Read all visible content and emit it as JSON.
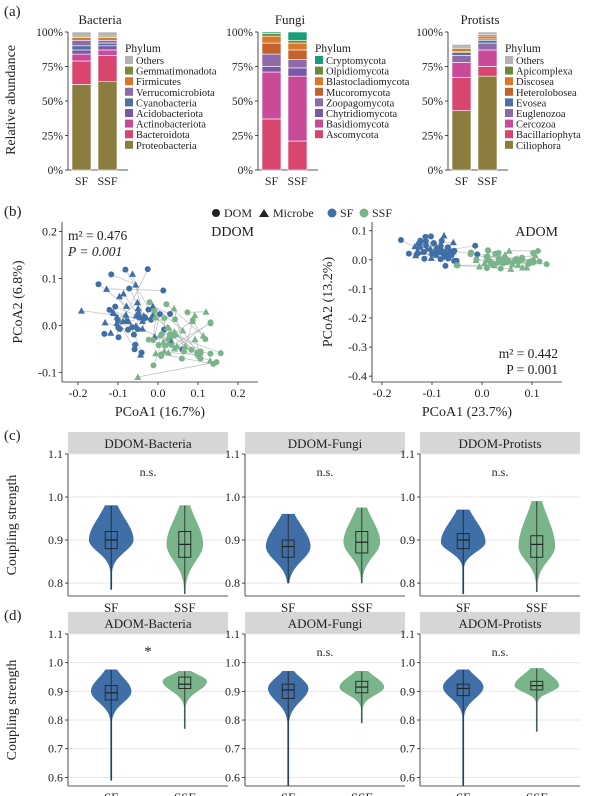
{
  "panel_labels": {
    "a": "(a)",
    "b": "(b)",
    "c": "(c)",
    "d": "(d)"
  },
  "colors": {
    "SF": "#3f6fa6",
    "SSF": "#79b48a",
    "strip_bg": "#d6d6d6",
    "grid": "#e7e7e7",
    "line": "#bdbdbd"
  },
  "panel_a": {
    "ylabel": "Relative abundance",
    "yticks": [
      "0%",
      "25%",
      "50%",
      "75%",
      "100%"
    ],
    "legend_title": "Phylum",
    "charts": [
      {
        "title": "Bacteria",
        "categories": [
          "SF",
          "SSF"
        ],
        "phyla": [
          "Others",
          "Gemmatimonadota",
          "Firmicutes",
          "Verrucomicrobiota",
          "Cyanobacteria",
          "Acidobacteriota",
          "Actinobacteriota",
          "Bacteroidota",
          "Proteobacteria"
        ],
        "colors": [
          "#b3b3b3",
          "#7a8b3c",
          "#d9772a",
          "#8f6aa8",
          "#4f6fa3",
          "#7a58a8",
          "#c84a99",
          "#d8456f",
          "#8b7d3e"
        ],
        "values": {
          "SF": [
            3,
            1,
            2,
            4,
            3,
            3,
            5,
            17,
            62
          ],
          "SSF": [
            3,
            1,
            2,
            2,
            2,
            3,
            4,
            19,
            64
          ]
        }
      },
      {
        "title": "Fungi",
        "categories": [
          "SF",
          "SSF"
        ],
        "phyla": [
          "Cryptomycota",
          "Olpidiomycota",
          "Blastocladiomycota",
          "Mucoromycota",
          "Zoopagomycota",
          "Chytridiomycota",
          "Basidiomycota",
          "Ascomycota"
        ],
        "colors": [
          "#1a9e7a",
          "#6c8a3a",
          "#d9772a",
          "#c4622e",
          "#8f6aa8",
          "#7a58a8",
          "#c84a99",
          "#d8456f"
        ],
        "values": {
          "SF": [
            1,
            2,
            5,
            8,
            9,
            4,
            34,
            37
          ],
          "SSF": [
            6,
            2,
            5,
            7,
            6,
            6,
            47,
            21
          ]
        }
      },
      {
        "title": "Protists",
        "categories": [
          "SF",
          "SSF"
        ],
        "phyla": [
          "Others",
          "Apicomplexa",
          "Discosea",
          "Heterolobosea",
          "Evosea",
          "Euglenozoa",
          "Cercozoa",
          "Bacillariophyta",
          "Ciliophora"
        ],
        "colors": [
          "#b3b3b3",
          "#6c8a3a",
          "#d9772a",
          "#c4622e",
          "#4f6fa3",
          "#8f6aa8",
          "#c84a99",
          "#d8456f",
          "#8b7d3e"
        ],
        "values": {
          "SF": [
            2,
            1,
            2,
            1,
            2,
            5,
            11,
            24,
            43
          ],
          "SSF": [
            2,
            1,
            2,
            1,
            2,
            5,
            12,
            7,
            68
          ]
        }
      }
    ]
  },
  "panel_b": {
    "legend": {
      "dom": "DOM",
      "microbe": "Microbe",
      "sf": "SF",
      "ssf": "SSF"
    },
    "plots": [
      {
        "title": "DDOM",
        "xlabel": "PCoA1 (16.7%)",
        "ylabel": "PCoA2 (6.8%)",
        "xlim": [
          -0.24,
          0.25
        ],
        "ylim": [
          -0.12,
          0.22
        ],
        "xticks": [
          -0.2,
          -0.1,
          0.0,
          0.1,
          0.2
        ],
        "yticks": [
          -0.1,
          0.0,
          0.1,
          0.2
        ],
        "xtick_labels": [
          "-0.2",
          "-0.1",
          "0.0",
          "0.1",
          "0.2"
        ],
        "ytick_labels": [
          "-0.1",
          "0.0",
          "0.1",
          "0.2"
        ],
        "stat_m2": "m² = 0.476",
        "stat_p": "P = 0.001",
        "stat_pos": "top-left",
        "center_sf": [
          -0.07,
          0.02
        ],
        "spread_sf": [
          0.07,
          0.06
        ],
        "center_ssf": [
          0.05,
          -0.03
        ],
        "spread_ssf": [
          0.07,
          0.05
        ],
        "seed": 11
      },
      {
        "title": "ADOM",
        "xlabel": "PCoA1 (23.7%)",
        "ylabel": "PCoA2 (13.2%)",
        "xlim": [
          -0.22,
          0.16
        ],
        "ylim": [
          -0.42,
          0.13
        ],
        "xticks": [
          -0.2,
          -0.1,
          0.0,
          0.1
        ],
        "yticks": [
          -0.4,
          -0.3,
          -0.2,
          -0.1,
          0.0,
          0.1
        ],
        "xtick_labels": [
          "-0.2",
          "-0.1",
          "0.0",
          "0.1"
        ],
        "ytick_labels": [
          "-0.4",
          "-0.3",
          "-0.2",
          "-0.1",
          "0.0",
          "0.1"
        ],
        "stat_m2": "m² = 0.442",
        "stat_p": "P = 0.001",
        "stat_pos": "bottom-right",
        "center_sf": [
          -0.09,
          0.04
        ],
        "spread_sf": [
          0.04,
          0.03
        ],
        "center_ssf": [
          0.05,
          0.0
        ],
        "spread_ssf": [
          0.05,
          0.025
        ],
        "seed": 29
      }
    ]
  },
  "chart_data": [
    {
      "type": "violin",
      "panel": "(c)",
      "ylabel": "Coupling strength",
      "ylim": [
        0.77,
        1.1
      ],
      "yticks": [
        0.8,
        0.9,
        1.0,
        1.1
      ],
      "ytick_labels": [
        "0.8",
        "0.9",
        "1.0",
        "1.1"
      ],
      "facets": [
        {
          "title": "DDOM-Bacteria",
          "sig": "n.s.",
          "groups": [
            {
              "name": "SF",
              "min": 0.785,
              "q1": 0.88,
              "median": 0.9,
              "q3": 0.92,
              "max": 0.98,
              "mode": 0.9,
              "width": 0.55
            },
            {
              "name": "SSF",
              "min": 0.775,
              "q1": 0.86,
              "median": 0.89,
              "q3": 0.92,
              "max": 0.98,
              "mode": 0.89,
              "width": 0.45
            }
          ]
        },
        {
          "title": "DDOM-Fungi",
          "sig": "n.s.",
          "groups": [
            {
              "name": "SF",
              "min": 0.8,
              "q1": 0.86,
              "median": 0.885,
              "q3": 0.9,
              "max": 0.96,
              "mode": 0.885,
              "width": 0.55
            },
            {
              "name": "SSF",
              "min": 0.8,
              "q1": 0.87,
              "median": 0.895,
              "q3": 0.92,
              "max": 0.975,
              "mode": 0.895,
              "width": 0.45
            }
          ]
        },
        {
          "title": "DDOM-Protists",
          "sig": "n.s.",
          "groups": [
            {
              "name": "SF",
              "min": 0.775,
              "q1": 0.88,
              "median": 0.9,
              "q3": 0.915,
              "max": 0.97,
              "mode": 0.895,
              "width": 0.55
            },
            {
              "name": "SSF",
              "min": 0.78,
              "q1": 0.86,
              "median": 0.89,
              "q3": 0.91,
              "max": 0.99,
              "mode": 0.885,
              "width": 0.45
            }
          ]
        }
      ]
    },
    {
      "type": "violin",
      "panel": "(d)",
      "ylabel": "Coupling strength",
      "ylim": [
        0.57,
        1.1
      ],
      "yticks": [
        0.6,
        0.7,
        0.8,
        0.9,
        1.0,
        1.1
      ],
      "ytick_labels": [
        "0.6",
        "0.7",
        "0.8",
        "0.9",
        "1.0",
        "1.1"
      ],
      "facets": [
        {
          "title": "ADOM-Bacteria",
          "sig": "*",
          "groups": [
            {
              "name": "SF",
              "min": 0.59,
              "q1": 0.87,
              "median": 0.895,
              "q3": 0.92,
              "max": 0.975,
              "mode": 0.9,
              "width": 0.5
            },
            {
              "name": "SSF",
              "min": 0.77,
              "q1": 0.91,
              "median": 0.925,
              "q3": 0.95,
              "max": 0.97,
              "mode": 0.935,
              "width": 0.55
            }
          ]
        },
        {
          "title": "ADOM-Fungi",
          "sig": "n.s.",
          "groups": [
            {
              "name": "SF",
              "min": 0.57,
              "q1": 0.875,
              "median": 0.905,
              "q3": 0.925,
              "max": 0.97,
              "mode": 0.91,
              "width": 0.5
            },
            {
              "name": "SSF",
              "min": 0.79,
              "q1": 0.895,
              "median": 0.915,
              "q3": 0.935,
              "max": 0.97,
              "mode": 0.915,
              "width": 0.55
            }
          ]
        },
        {
          "title": "ADOM-Protists",
          "sig": "n.s.",
          "groups": [
            {
              "name": "SF",
              "min": 0.57,
              "q1": 0.885,
              "median": 0.91,
              "q3": 0.925,
              "max": 0.975,
              "mode": 0.915,
              "width": 0.5
            },
            {
              "name": "SSF",
              "min": 0.76,
              "q1": 0.905,
              "median": 0.92,
              "q3": 0.935,
              "max": 0.98,
              "mode": 0.92,
              "width": 0.55
            }
          ]
        }
      ]
    }
  ]
}
